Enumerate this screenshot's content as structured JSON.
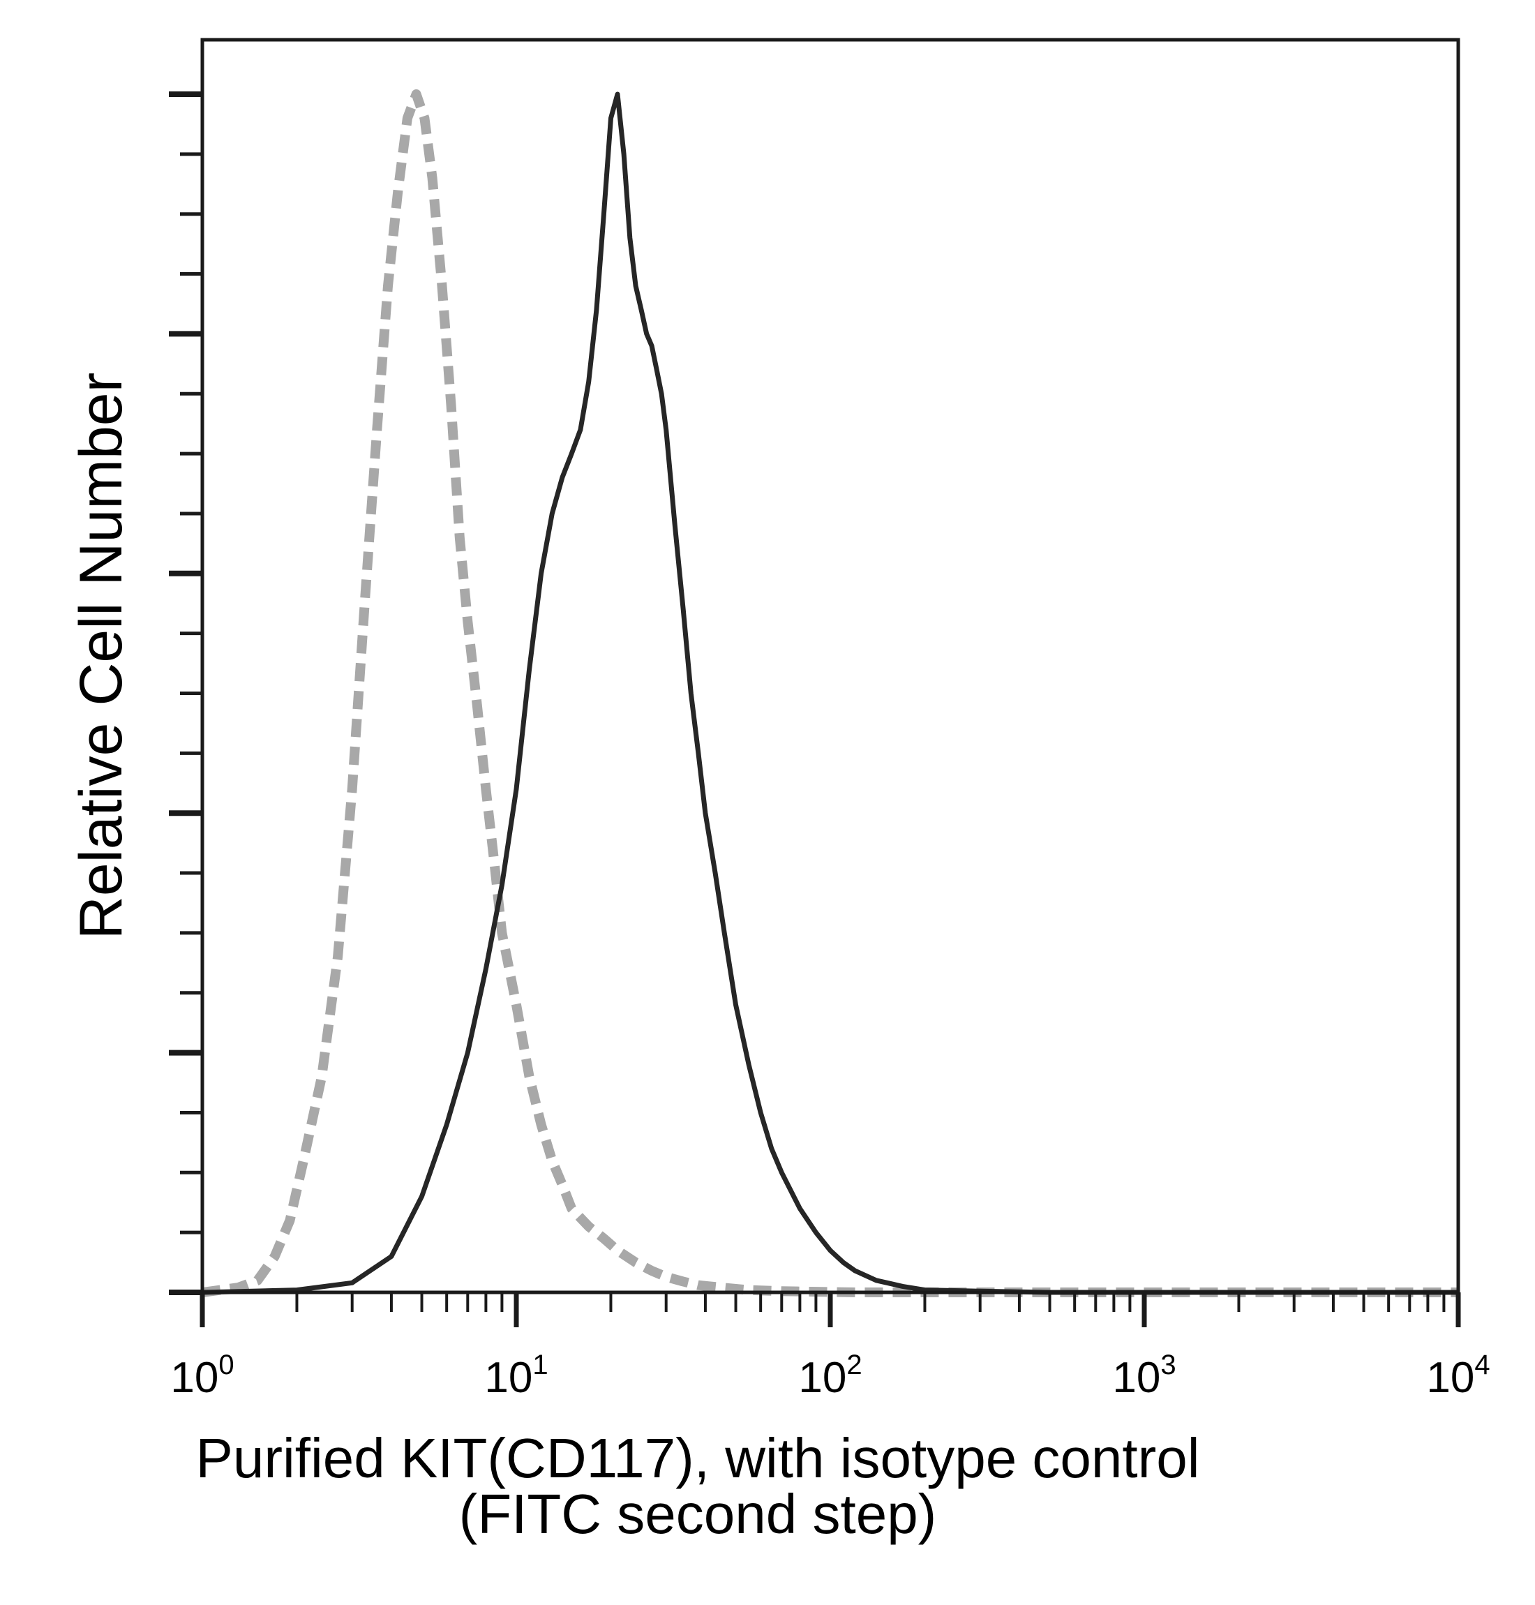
{
  "chart_data": {
    "type": "line",
    "title": "",
    "xlabel_line1": "Purified KIT(CD117), with isotype control",
    "xlabel_line2": "(FITC second step)",
    "ylabel": "Relative Cell Number",
    "x_scale": "log",
    "xlim": [
      1,
      10000
    ],
    "ylim": [
      0,
      100
    ],
    "x_ticks": [
      {
        "base": "10",
        "exp": "0"
      },
      {
        "base": "10",
        "exp": "1"
      },
      {
        "base": "10",
        "exp": "2"
      },
      {
        "base": "10",
        "exp": "3"
      },
      {
        "base": "10",
        "exp": "4"
      }
    ],
    "y_tick_labels": "none",
    "grid": false,
    "legend": "none",
    "series": [
      {
        "style": "dashed",
        "color": "#a8a8a8",
        "x": [
          1.0,
          1.3,
          1.5,
          1.7,
          1.9,
          2.1,
          2.4,
          2.7,
          3.0,
          3.3,
          3.6,
          3.9,
          4.2,
          4.5,
          4.8,
          5.1,
          5.4,
          5.8,
          6.2,
          6.6,
          7.0,
          7.5,
          8.0,
          8.5,
          9.0,
          10,
          11,
          12,
          13,
          14,
          15,
          17,
          19,
          21,
          24,
          27,
          30,
          34,
          38,
          45,
          55,
          70,
          90,
          120,
          200,
          500,
          10000
        ],
        "y": [
          0,
          0.4,
          1,
          3,
          6,
          11,
          18,
          28,
          42,
          58,
          72,
          84,
          92,
          98,
          100,
          98,
          93,
          84,
          74,
          63,
          56,
          49,
          42,
          36,
          30,
          24,
          18,
          14,
          11,
          9,
          7,
          5.5,
          4.5,
          3.5,
          2.5,
          1.8,
          1.3,
          0.9,
          0.6,
          0.4,
          0.2,
          0.1,
          0.05,
          0,
          0,
          0,
          0
        ]
      },
      {
        "style": "solid",
        "color": "#262626",
        "x": [
          1.0,
          2.0,
          3.0,
          4.0,
          5.0,
          6.0,
          7.0,
          8.0,
          9.0,
          10,
          11,
          12,
          13,
          14,
          15,
          16,
          17,
          18,
          19,
          20,
          21,
          22,
          23,
          24,
          25,
          26,
          27,
          28,
          29,
          30,
          32,
          34,
          36,
          38,
          40,
          43,
          46,
          50,
          55,
          60,
          65,
          70,
          80,
          90,
          100,
          110,
          120,
          140,
          170,
          200,
          300,
          500,
          1000,
          10000
        ],
        "y": [
          0,
          0.2,
          0.8,
          3,
          8,
          14,
          20,
          27,
          34,
          42,
          52,
          60,
          65,
          68,
          70,
          72,
          76,
          82,
          90,
          98,
          100,
          95,
          88,
          84,
          82,
          80,
          79,
          77,
          75,
          72,
          64,
          57,
          50,
          45,
          40,
          35,
          30,
          24,
          19,
          15,
          12,
          10,
          7,
          5,
          3.5,
          2.5,
          1.8,
          1.0,
          0.5,
          0.2,
          0.1,
          0,
          0,
          0
        ]
      }
    ]
  }
}
